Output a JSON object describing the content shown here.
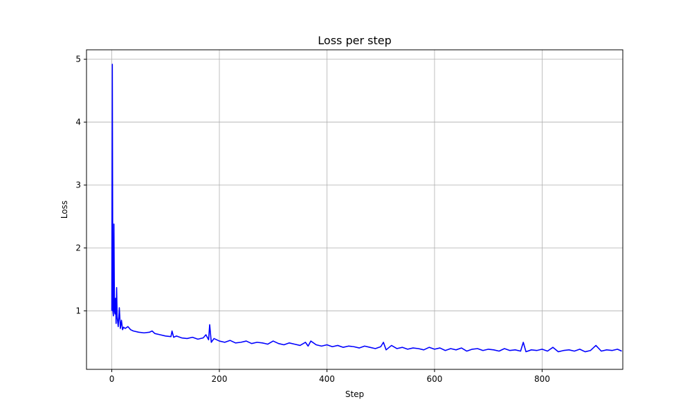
{
  "chart_data": {
    "type": "line",
    "title": "Loss per step",
    "xlabel": "Step",
    "ylabel": "Loss",
    "xlim": [
      -47,
      950
    ],
    "ylim": [
      0.07,
      5.15
    ],
    "xticks": [
      0,
      200,
      400,
      600,
      800
    ],
    "yticks": [
      1,
      2,
      3,
      4,
      5
    ],
    "grid": true,
    "line_color": "#0000ff",
    "series": [
      {
        "x": [
          0,
          1,
          2,
          3,
          4,
          5,
          6,
          7,
          8,
          9,
          10,
          12,
          14,
          16,
          18,
          20,
          22,
          25,
          30,
          35,
          40,
          50,
          60,
          70,
          75,
          80,
          90,
          100,
          110,
          112,
          115,
          120,
          130,
          140,
          150,
          160,
          170,
          175,
          180,
          182,
          185,
          190,
          200,
          210,
          220,
          230,
          240,
          250,
          260,
          270,
          280,
          290,
          300,
          310,
          320,
          330,
          340,
          350,
          360,
          365,
          370,
          380,
          390,
          400,
          410,
          420,
          430,
          440,
          450,
          460,
          470,
          480,
          490,
          500,
          505,
          510,
          520,
          530,
          540,
          550,
          560,
          570,
          580,
          590,
          600,
          610,
          620,
          630,
          640,
          650,
          660,
          670,
          680,
          690,
          700,
          710,
          720,
          730,
          740,
          750,
          760,
          765,
          770,
          780,
          790,
          800,
          810,
          820,
          830,
          840,
          850,
          860,
          870,
          880,
          890,
          900,
          910,
          920,
          930,
          940,
          948
        ],
        "y": [
          1.0,
          4.92,
          1.0,
          0.92,
          2.38,
          1.0,
          0.95,
          1.2,
          0.8,
          1.37,
          0.9,
          0.75,
          1.05,
          0.72,
          0.85,
          0.7,
          0.74,
          0.72,
          0.75,
          0.7,
          0.68,
          0.66,
          0.65,
          0.66,
          0.68,
          0.64,
          0.62,
          0.6,
          0.59,
          0.68,
          0.58,
          0.6,
          0.57,
          0.56,
          0.58,
          0.55,
          0.57,
          0.62,
          0.54,
          0.78,
          0.5,
          0.56,
          0.52,
          0.5,
          0.53,
          0.49,
          0.5,
          0.52,
          0.48,
          0.5,
          0.49,
          0.47,
          0.52,
          0.48,
          0.46,
          0.49,
          0.47,
          0.45,
          0.5,
          0.44,
          0.52,
          0.46,
          0.44,
          0.46,
          0.43,
          0.45,
          0.42,
          0.44,
          0.43,
          0.41,
          0.44,
          0.42,
          0.4,
          0.43,
          0.5,
          0.38,
          0.45,
          0.4,
          0.42,
          0.39,
          0.41,
          0.4,
          0.38,
          0.42,
          0.39,
          0.41,
          0.37,
          0.4,
          0.38,
          0.41,
          0.36,
          0.39,
          0.4,
          0.37,
          0.39,
          0.38,
          0.36,
          0.4,
          0.37,
          0.38,
          0.36,
          0.5,
          0.35,
          0.38,
          0.37,
          0.39,
          0.36,
          0.42,
          0.35,
          0.37,
          0.38,
          0.36,
          0.39,
          0.35,
          0.37,
          0.45,
          0.36,
          0.38,
          0.37,
          0.39,
          0.36
        ]
      }
    ]
  }
}
